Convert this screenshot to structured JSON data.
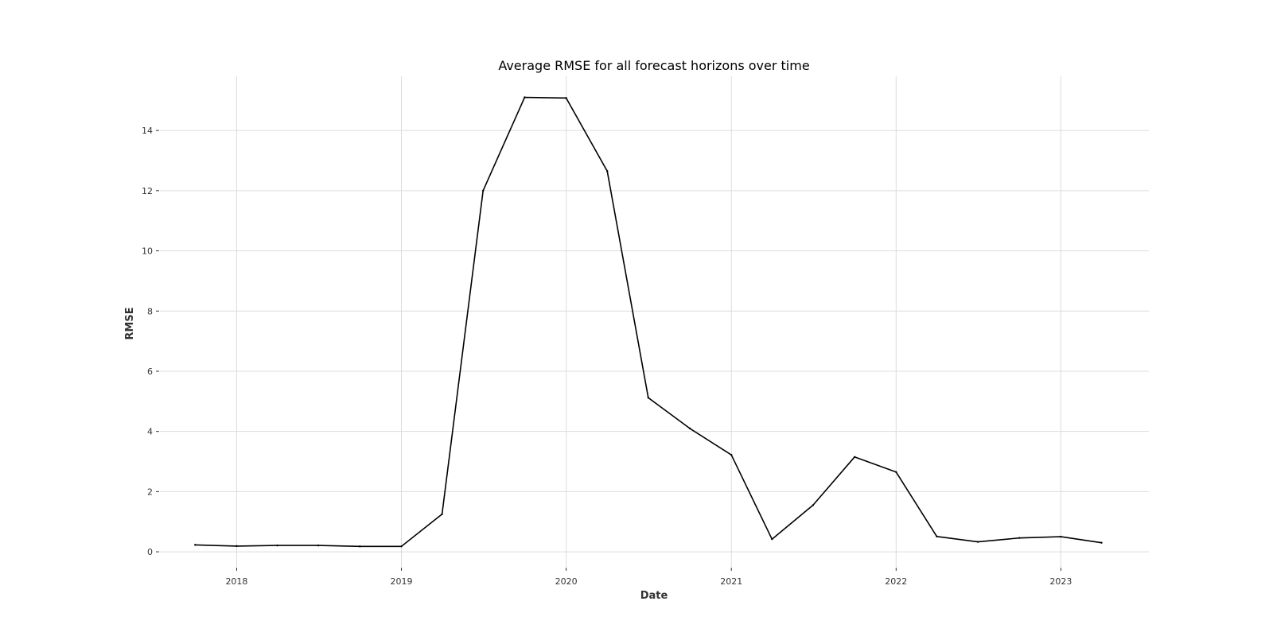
{
  "chart_data": {
    "type": "line",
    "title": "Average RMSE for all forecast horizons over time",
    "xlabel": "Date",
    "ylabel": "RMSE",
    "x": [
      "2017-10-01",
      "2018-01-01",
      "2018-04-01",
      "2018-07-01",
      "2018-10-01",
      "2019-01-01",
      "2019-04-01",
      "2019-07-01",
      "2019-10-01",
      "2020-01-01",
      "2020-04-01",
      "2020-07-01",
      "2020-10-01",
      "2021-01-01",
      "2021-04-01",
      "2021-07-01",
      "2021-10-01",
      "2022-01-01",
      "2022-04-01",
      "2022-07-01",
      "2022-10-01",
      "2023-01-01",
      "2023-04-01"
    ],
    "series": [
      {
        "values": [
          0.23,
          0.19,
          0.21,
          0.21,
          0.18,
          0.18,
          1.25,
          12.0,
          15.1,
          15.08,
          12.65,
          5.12,
          4.1,
          3.22,
          0.42,
          1.55,
          3.15,
          2.65,
          0.51,
          0.33,
          0.46,
          0.5,
          0.3
        ],
        "color": "#000000"
      }
    ],
    "xlim": [
      "2017-07-15",
      "2023-07-15"
    ],
    "ylim": [
      -0.5,
      15.8
    ],
    "x_ticks": [
      "2018",
      "2019",
      "2020",
      "2021",
      "2022",
      "2023"
    ],
    "y_ticks": [
      0,
      2,
      4,
      6,
      8,
      10,
      12,
      14
    ],
    "grid": true,
    "colors": {
      "line": "#000000",
      "grid": "#dcdcdc",
      "text": "#333333"
    }
  }
}
